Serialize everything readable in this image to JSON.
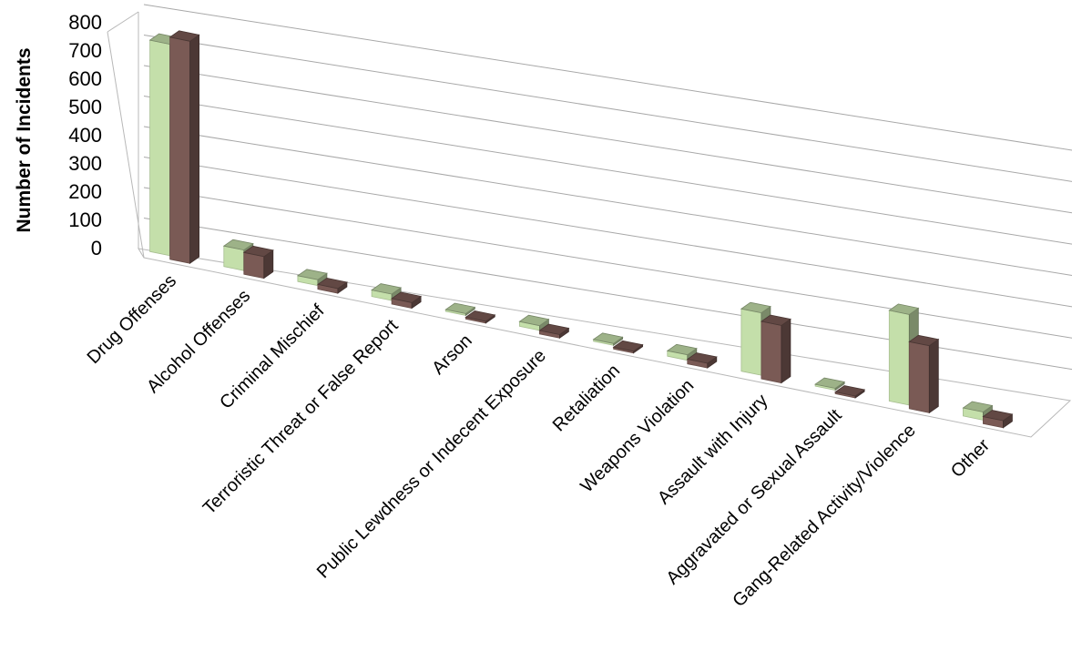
{
  "chart_data": {
    "type": "bar",
    "style": "3d-clustered-column",
    "ylabel": "Number of Incidents",
    "ylim": [
      0,
      800
    ],
    "y_ticks": [
      "0",
      "100",
      "200",
      "300",
      "400",
      "500",
      "600",
      "700",
      "800"
    ],
    "grid": true,
    "legend": "none",
    "categories": [
      "Drug Offenses",
      "Alcohol Offenses",
      "Criminal Mischief",
      "Terroristic Threat or False Report",
      "Arson",
      "Public Lewdness or Indecent Exposure",
      "Retaliation",
      "Weapons Violation",
      "Assault with Injury",
      "Aggravated or Sexual Assault",
      "Gang-Related Activity/Violence",
      "Other"
    ],
    "series": [
      {
        "color": "#c4dfaa",
        "values": [
          745,
          75,
          22,
          25,
          5,
          20,
          5,
          25,
          300,
          8,
          480,
          45
        ]
      },
      {
        "color": "#7a5a55",
        "values": [
          790,
          80,
          18,
          22,
          6,
          15,
          4,
          22,
          280,
          7,
          360,
          40
        ]
      }
    ]
  }
}
